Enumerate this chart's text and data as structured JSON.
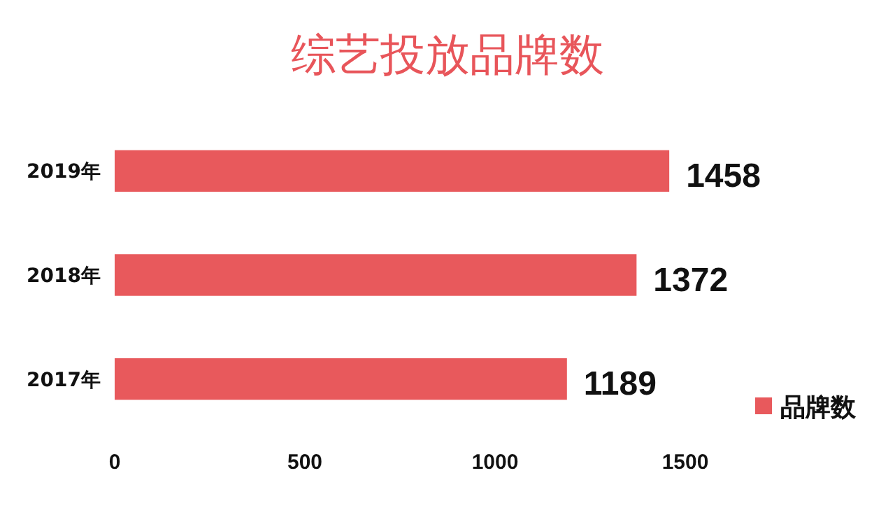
{
  "chart_data": {
    "type": "bar",
    "orientation": "horizontal",
    "title": "综艺投放品牌数",
    "categories": [
      "2019年",
      "2018年",
      "2017年"
    ],
    "series": [
      {
        "name": "品牌数",
        "color": "#e8595c",
        "values": [
          1458,
          1372,
          1189
        ]
      }
    ],
    "xlim": [
      0,
      1500
    ],
    "xticks": [
      0,
      500,
      1000,
      1500
    ],
    "data_labels": true,
    "legend": "bottom right",
    "grid": false
  }
}
